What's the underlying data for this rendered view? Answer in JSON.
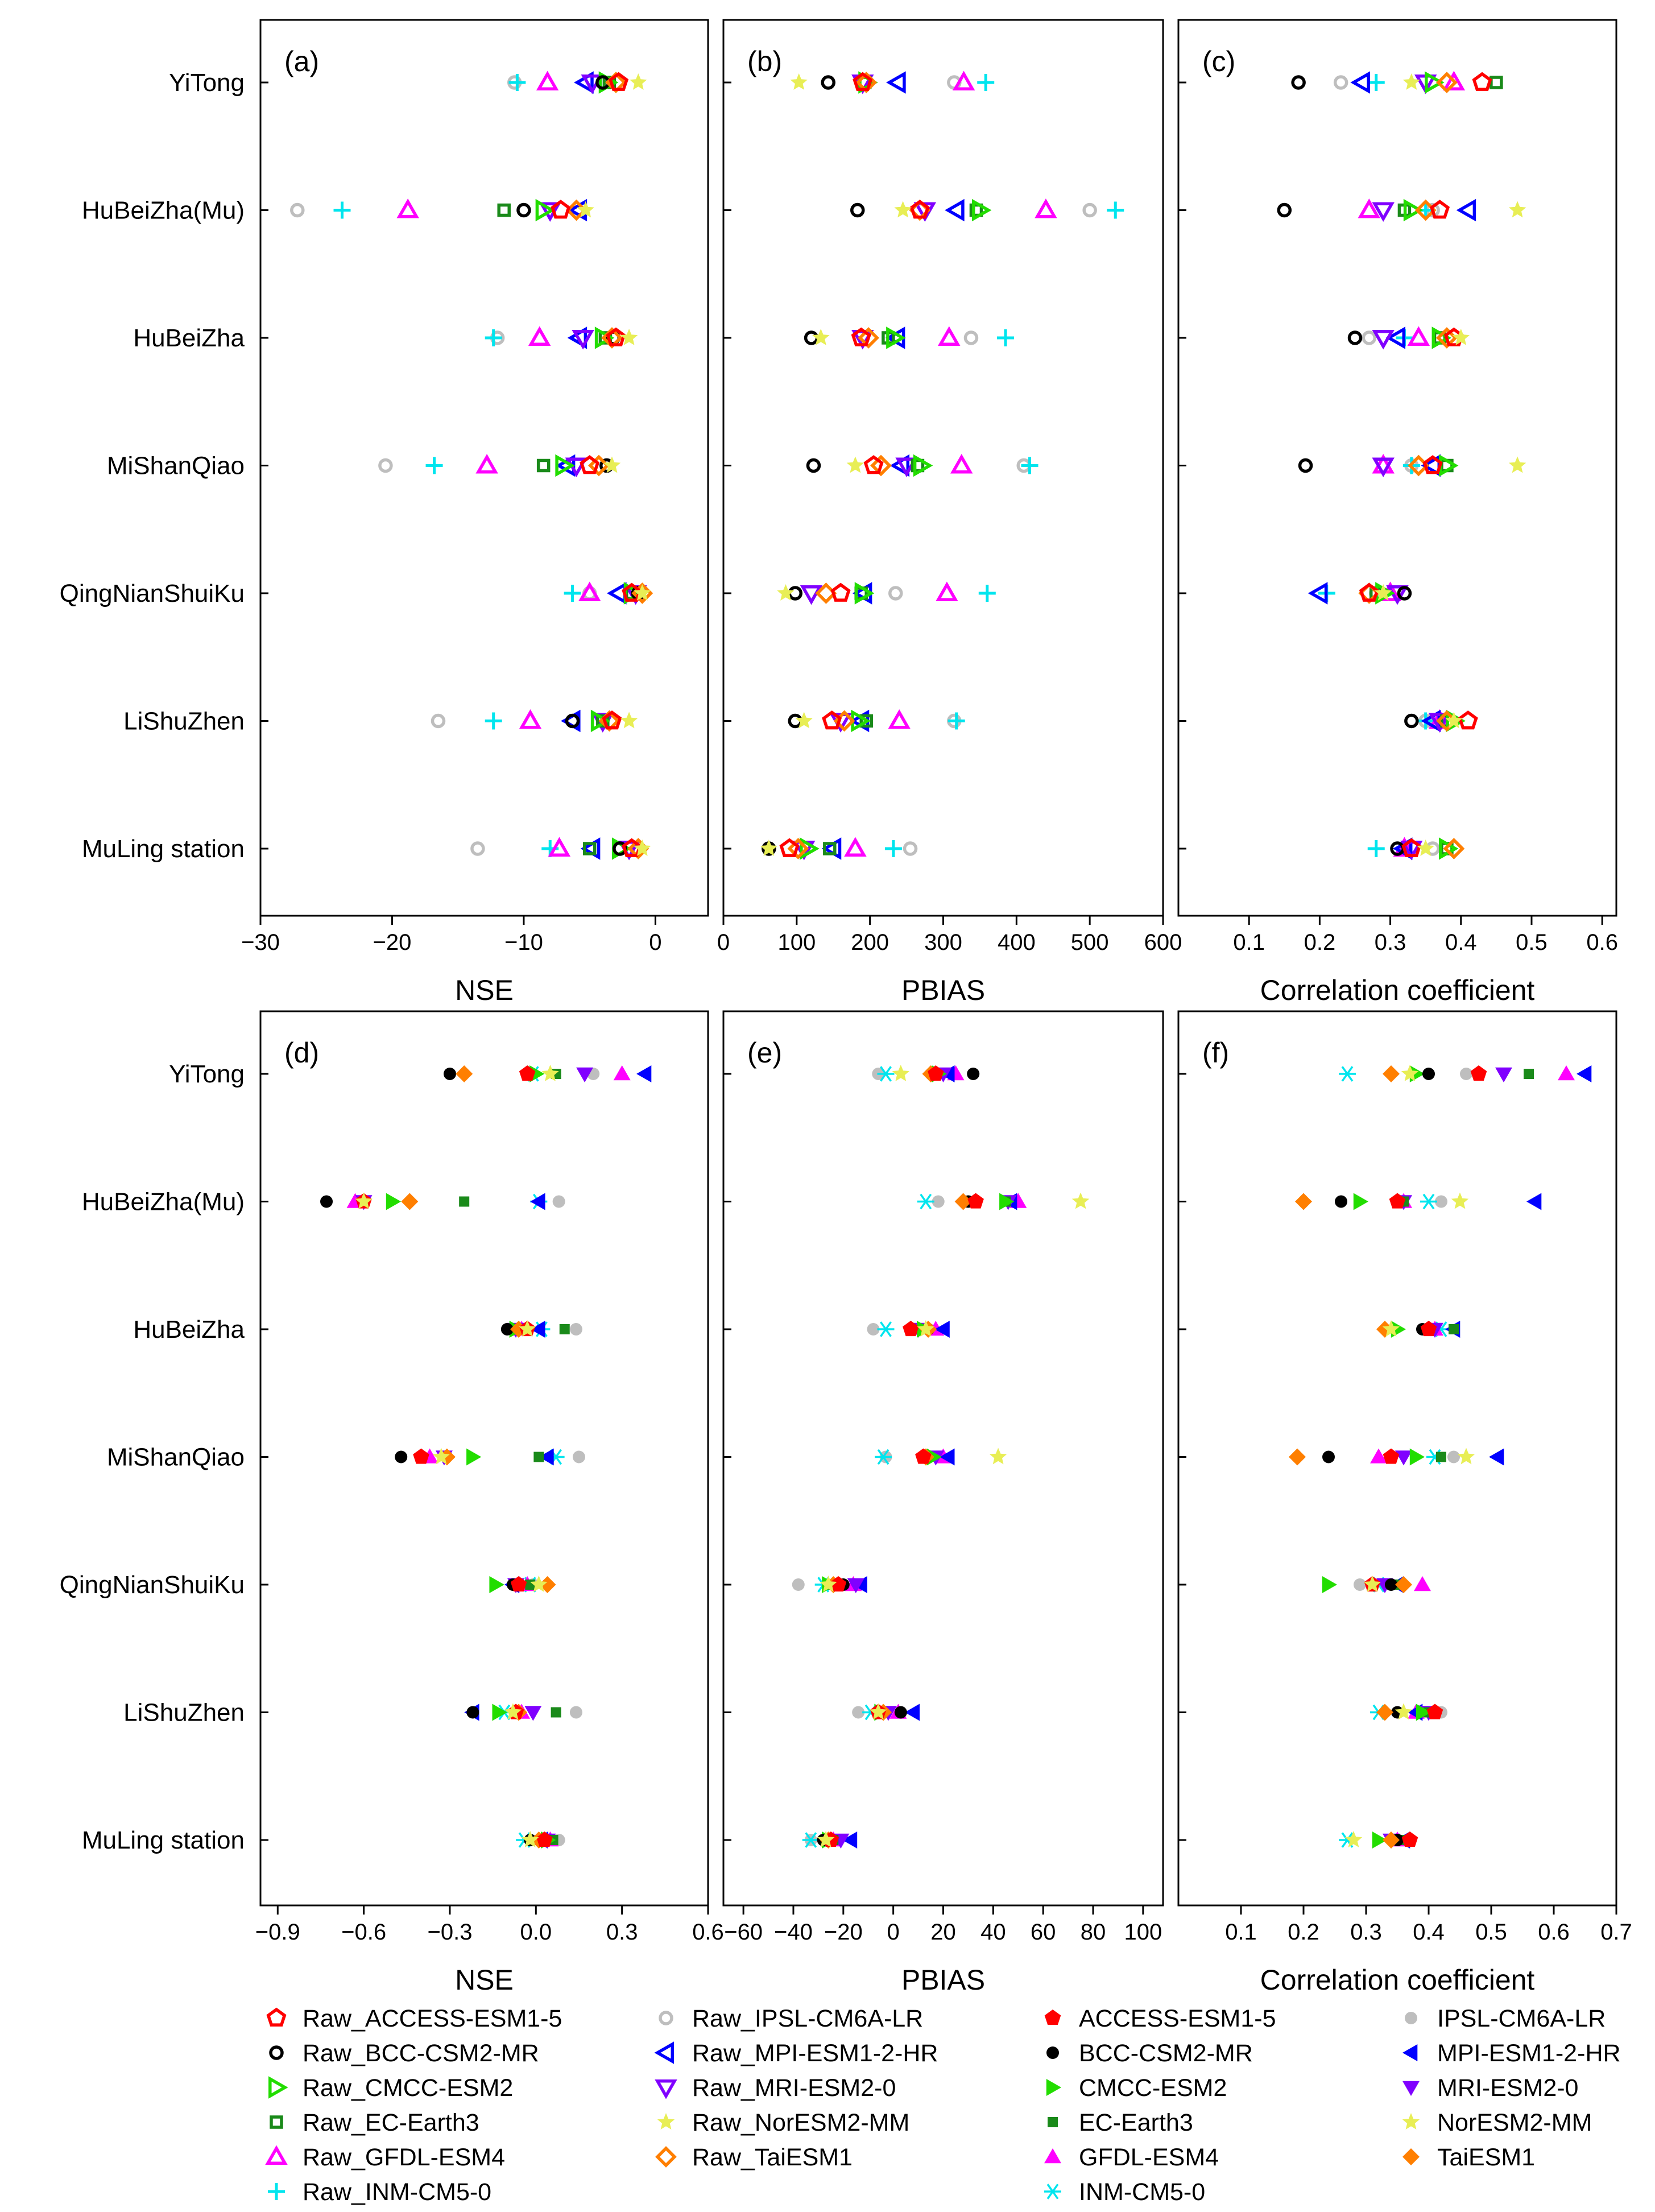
{
  "stations": [
    "YiTong",
    "HuBeiZha(Mu)",
    "HuBeiZha",
    "MiShanQiao",
    "QingNianShuiKu",
    "LiShuZhen",
    "MuLing station"
  ],
  "models": [
    {
      "name": "ACCESS-ESM1-5",
      "color": "#ff0000",
      "marker": "pentagon"
    },
    {
      "name": "BCC-CSM2-MR",
      "color": "#000000",
      "marker": "circle"
    },
    {
      "name": "CMCC-ESM2",
      "color": "#22dd00",
      "marker": "triangle-right"
    },
    {
      "name": "EC-Earth3",
      "color": "#1a8a1a",
      "marker": "square"
    },
    {
      "name": "GFDL-ESM4",
      "color": "#ff00ff",
      "marker": "triangle-up"
    },
    {
      "name": "INM-CM5-0",
      "color": "#00e5ee",
      "marker": "plus"
    },
    {
      "name": "IPSL-CM6A-LR",
      "color": "#bebebe",
      "marker": "circle"
    },
    {
      "name": "MPI-ESM1-2-HR",
      "color": "#0000ff",
      "marker": "triangle-left"
    },
    {
      "name": "MRI-ESM2-0",
      "color": "#8000ff",
      "marker": "triangle-down"
    },
    {
      "name": "NorESM2-MM",
      "color": "#e8ee55",
      "marker": "star"
    },
    {
      "name": "TaiESM1",
      "color": "#ff7f00",
      "marker": "diamond"
    }
  ],
  "legend": {
    "raw": [
      "Raw_ACCESS-ESM1-5",
      "Raw_BCC-CSM2-MR",
      "Raw_CMCC-ESM2",
      "Raw_EC-Earth3",
      "Raw_GFDL-ESM4",
      "Raw_INM-CM5-0",
      "Raw_IPSL-CM6A-LR",
      "Raw_MPI-ESM1-2-HR",
      "Raw_MRI-ESM2-0",
      "Raw_NorESM2-MM",
      "Raw_TaiESM1"
    ],
    "corrected": [
      "ACCESS-ESM1-5",
      "BCC-CSM2-MR",
      "CMCC-ESM2",
      "EC-Earth3",
      "GFDL-ESM4",
      "INM-CM5-0",
      "IPSL-CM6A-LR",
      "MPI-ESM1-2-HR",
      "MRI-ESM2-0",
      "NorESM2-MM",
      "TaiESM1"
    ]
  },
  "chart_data": [
    {
      "panel": "(a)",
      "type": "scatter",
      "xlabel": "NSE",
      "xlim": [
        -30,
        4
      ],
      "xticks": [
        -30,
        -20,
        -10,
        0
      ],
      "xtick_labels": [
        "−30",
        "−20",
        "−10",
        "0"
      ],
      "filled": false,
      "values": [
        [
          -2.8,
          -4.0,
          -3.7,
          -3.5,
          -8.2,
          -10.5,
          -10.7,
          -5.3,
          -4.8,
          -1.3,
          -3.0
        ],
        [
          -7.2,
          -10.0,
          -8.5,
          -11.5,
          -18.8,
          -23.8,
          -27.2,
          -5.8,
          -8.0,
          -5.3,
          -6.0
        ],
        [
          -3.0,
          -3.2,
          -4.0,
          -3.8,
          -8.8,
          -12.3,
          -12.0,
          -5.8,
          -5.5,
          -2.0,
          -3.3
        ],
        [
          -5.0,
          -3.7,
          -7.0,
          -8.5,
          -12.8,
          -16.8,
          -20.5,
          -6.7,
          -6.0,
          -3.3,
          -4.3
        ],
        [
          -1.8,
          -1.3,
          -1.8,
          -1.8,
          -5.0,
          -6.3,
          -5.0,
          -2.8,
          -1.5,
          -1.0,
          -1.0
        ],
        [
          -3.3,
          -6.3,
          -4.3,
          -4.0,
          -9.5,
          -12.3,
          -16.5,
          -6.3,
          -4.0,
          -2.0,
          -3.5
        ],
        [
          -1.8,
          -2.7,
          -2.7,
          -5.0,
          -7.3,
          -8.0,
          -13.5,
          -4.8,
          -2.0,
          -1.0,
          -1.3
        ]
      ]
    },
    {
      "panel": "(b)",
      "type": "scatter",
      "xlabel": "PBIAS",
      "xlim": [
        0,
        600
      ],
      "xticks": [
        0,
        100,
        200,
        300,
        400,
        500,
        600
      ],
      "xtick_labels": [
        "0",
        "100",
        "200",
        "300",
        "400",
        "500",
        "600"
      ],
      "filled": false,
      "values": [
        [
          190,
          143,
          195,
          193,
          328,
          358,
          315,
          238,
          190,
          103,
          195
        ],
        [
          268,
          183,
          350,
          345,
          440,
          535,
          500,
          318,
          275,
          245,
          268
        ],
        [
          188,
          120,
          233,
          225,
          308,
          385,
          338,
          237,
          190,
          133,
          198
        ],
        [
          205,
          123,
          270,
          265,
          325,
          418,
          410,
          243,
          250,
          180,
          215
        ],
        [
          160,
          98,
          190,
          188,
          305,
          360,
          235,
          192,
          120,
          85,
          140
        ],
        [
          148,
          98,
          185,
          195,
          240,
          318,
          315,
          188,
          160,
          110,
          165
        ],
        [
          90,
          62,
          115,
          145,
          180,
          232,
          255,
          150,
          110,
          62,
          102
        ]
      ]
    },
    {
      "panel": "(c)",
      "type": "scatter",
      "xlabel": "Correlation coefficient",
      "xlim": [
        0.0,
        0.62
      ],
      "xticks": [
        0.1,
        0.2,
        0.3,
        0.4,
        0.5,
        0.6
      ],
      "xtick_labels": [
        "0.1",
        "0.2",
        "0.3",
        "0.4",
        "0.5",
        "0.6"
      ],
      "filled": false,
      "values": [
        [
          0.43,
          0.17,
          0.36,
          0.45,
          0.39,
          0.28,
          0.23,
          0.26,
          0.35,
          0.33,
          0.38
        ],
        [
          0.37,
          0.15,
          0.33,
          0.32,
          0.27,
          0.35,
          0.36,
          0.41,
          0.29,
          0.48,
          0.35
        ],
        [
          0.39,
          0.25,
          0.37,
          0.37,
          0.34,
          0.32,
          0.27,
          0.31,
          0.29,
          0.4,
          0.38
        ],
        [
          0.36,
          0.18,
          0.38,
          0.38,
          0.29,
          0.33,
          0.33,
          0.36,
          0.29,
          0.48,
          0.34
        ],
        [
          0.27,
          0.32,
          0.29,
          0.28,
          0.3,
          0.21,
          0.28,
          0.2,
          0.31,
          0.29,
          0.27
        ],
        [
          0.41,
          0.33,
          0.39,
          0.38,
          0.37,
          0.35,
          0.35,
          0.36,
          0.37,
          0.39,
          0.38
        ],
        [
          0.33,
          0.31,
          0.38,
          0.38,
          0.32,
          0.28,
          0.36,
          0.32,
          0.33,
          0.35,
          0.39
        ]
      ]
    },
    {
      "panel": "(d)",
      "type": "scatter",
      "xlabel": "NSE",
      "xlim": [
        -0.96,
        0.6
      ],
      "xticks": [
        -0.9,
        -0.6,
        -0.3,
        0.0,
        0.3,
        0.6
      ],
      "xtick_labels": [
        "−0.9",
        "−0.6",
        "−0.3",
        "0.0",
        "0.3",
        "0.6"
      ],
      "filled": true,
      "values": [
        [
          -0.03,
          -0.3,
          0.0,
          0.07,
          0.3,
          -0.01,
          0.2,
          0.38,
          0.17,
          0.05,
          -0.25
        ],
        [
          -0.6,
          -0.73,
          -0.5,
          -0.25,
          -0.63,
          0.01,
          0.08,
          0.01,
          -0.6,
          -0.6,
          -0.44
        ],
        [
          -0.03,
          -0.1,
          -0.07,
          0.1,
          -0.05,
          0.02,
          0.14,
          0.01,
          -0.07,
          -0.03,
          -0.06
        ],
        [
          -0.4,
          -0.47,
          -0.22,
          0.01,
          -0.37,
          0.07,
          0.15,
          0.04,
          -0.32,
          -0.33,
          -0.31
        ],
        [
          -0.06,
          -0.08,
          -0.14,
          -0.02,
          -0.03,
          -0.02,
          -0.01,
          -0.08,
          -0.07,
          0.01,
          0.04
        ],
        [
          -0.07,
          -0.22,
          -0.13,
          0.07,
          -0.05,
          -0.11,
          0.14,
          -0.22,
          -0.01,
          -0.08,
          -0.06
        ],
        [
          0.03,
          -0.02,
          0.04,
          0.06,
          0.05,
          -0.04,
          0.08,
          0.02,
          0.04,
          -0.02,
          0.01
        ]
      ]
    },
    {
      "panel": "(e)",
      "type": "scatter",
      "xlabel": "PBIAS",
      "xlim": [
        -68,
        108
      ],
      "xticks": [
        -60,
        -40,
        -20,
        0,
        20,
        40,
        60,
        80,
        100
      ],
      "xtick_labels": [
        "−60",
        "−40",
        "−20",
        "0",
        "20",
        "40",
        "60",
        "80",
        "100"
      ],
      "filled": true,
      "values": [
        [
          17,
          32,
          18,
          17,
          25,
          -3,
          -6,
          22,
          20,
          3,
          15
        ],
        [
          33,
          30,
          45,
          45,
          50,
          13,
          18,
          47,
          46,
          75,
          28
        ],
        [
          7,
          14,
          12,
          13,
          17,
          -3,
          -8,
          20,
          10,
          13,
          14
        ],
        [
          12,
          13,
          16,
          14,
          20,
          -4,
          -3,
          22,
          17,
          42,
          13
        ],
        [
          -22,
          -20,
          -26,
          -24,
          -16,
          -28,
          -38,
          -13,
          -15,
          -26,
          -24
        ],
        [
          -6,
          3,
          -5,
          -5,
          2,
          -9,
          -14,
          8,
          -2,
          -6,
          -4
        ],
        [
          -25,
          -28,
          -26,
          -24,
          -24,
          -33,
          -33,
          -17,
          -21,
          -27,
          -26
        ]
      ]
    },
    {
      "panel": "(f)",
      "type": "scatter",
      "xlabel": "Correlation coefficient",
      "xlim": [
        0.0,
        0.7
      ],
      "xticks": [
        0.1,
        0.2,
        0.3,
        0.4,
        0.5,
        0.6,
        0.7
      ],
      "xtick_labels": [
        "0.1",
        "0.2",
        "0.3",
        "0.4",
        "0.5",
        "0.6",
        "0.7"
      ],
      "filled": true,
      "values": [
        [
          0.48,
          0.4,
          0.38,
          0.56,
          0.62,
          0.27,
          0.46,
          0.65,
          0.52,
          0.37,
          0.34
        ],
        [
          0.35,
          0.26,
          0.29,
          0.36,
          0.36,
          0.4,
          0.42,
          0.57,
          0.36,
          0.45,
          0.2
        ],
        [
          0.4,
          0.39,
          0.35,
          0.44,
          0.41,
          0.42,
          0.4,
          0.44,
          0.41,
          0.34,
          0.33
        ],
        [
          0.34,
          0.24,
          0.38,
          0.42,
          0.32,
          0.41,
          0.44,
          0.51,
          0.36,
          0.46,
          0.19
        ],
        [
          0.31,
          0.34,
          0.24,
          0.35,
          0.39,
          0.32,
          0.29,
          0.35,
          0.33,
          0.31,
          0.36
        ],
        [
          0.41,
          0.35,
          0.39,
          0.4,
          0.38,
          0.32,
          0.42,
          0.38,
          0.4,
          0.36,
          0.33
        ],
        [
          0.37,
          0.35,
          0.32,
          0.36,
          0.35,
          0.27,
          0.37,
          0.36,
          0.34,
          0.28,
          0.34
        ]
      ]
    }
  ]
}
